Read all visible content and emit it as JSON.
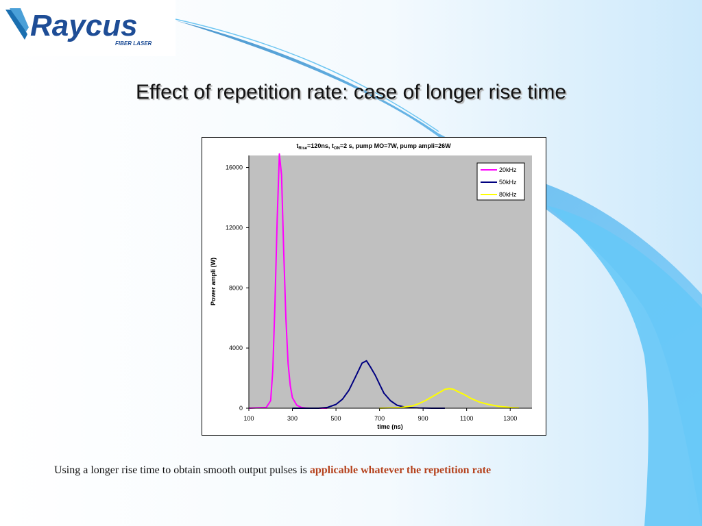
{
  "logo": {
    "brand": "Raycus",
    "tagline": "FIBER LASER"
  },
  "slide": {
    "title": "Effect of repetition rate: case of longer rise time",
    "caption_prefix": "Using a longer rise time to obtain smooth output pulses is ",
    "caption_emphasis": "applicable whatever the repetition rate",
    "colors": {
      "emphasis": "#b5421d"
    }
  },
  "chart_data": {
    "type": "line",
    "title_parts": {
      "t1": "t",
      "sub1": "Rise",
      "mid1": "=120ns, t",
      "sub2": "ON",
      "mid2": "=2   s, pump MO=7W, pump ampli=26W"
    },
    "xlabel": "time (ns)",
    "ylabel": "Power ampli (W)",
    "xlim": [
      100,
      1400
    ],
    "ylim": [
      0,
      16800
    ],
    "xticks": [
      100,
      300,
      500,
      700,
      900,
      1100,
      1300
    ],
    "yticks": [
      0,
      4000,
      8000,
      12000,
      16000
    ],
    "plot_background": "#c0c0c0",
    "grid": false,
    "legend_position": "top-right",
    "series": [
      {
        "name": "20kHz",
        "color": "#ff00ff",
        "x": [
          100,
          180,
          200,
          210,
          220,
          230,
          240,
          250,
          260,
          270,
          280,
          290,
          300,
          320,
          340,
          360,
          380,
          420,
          460
        ],
        "y": [
          0,
          50,
          500,
          2500,
          7000,
          12500,
          16900,
          15500,
          10500,
          6000,
          3000,
          1500,
          700,
          200,
          60,
          20,
          0,
          0,
          0
        ]
      },
      {
        "name": "50kHz",
        "color": "#000080",
        "x": [
          300,
          420,
          460,
          500,
          530,
          560,
          590,
          620,
          640,
          660,
          680,
          700,
          720,
          750,
          780,
          820,
          880,
          940,
          1000
        ],
        "y": [
          0,
          0,
          50,
          250,
          600,
          1200,
          2100,
          3000,
          3150,
          2700,
          2200,
          1600,
          1000,
          500,
          200,
          60,
          20,
          0,
          0
        ]
      },
      {
        "name": "80kHz",
        "color": "#ffff00",
        "x": [
          700,
          800,
          850,
          880,
          910,
          940,
          970,
          1000,
          1020,
          1040,
          1060,
          1090,
          1120,
          1160,
          1200,
          1250,
          1300,
          1340
        ],
        "y": [
          0,
          50,
          150,
          300,
          500,
          750,
          1000,
          1250,
          1300,
          1250,
          1100,
          900,
          650,
          400,
          250,
          120,
          50,
          20
        ]
      }
    ]
  }
}
